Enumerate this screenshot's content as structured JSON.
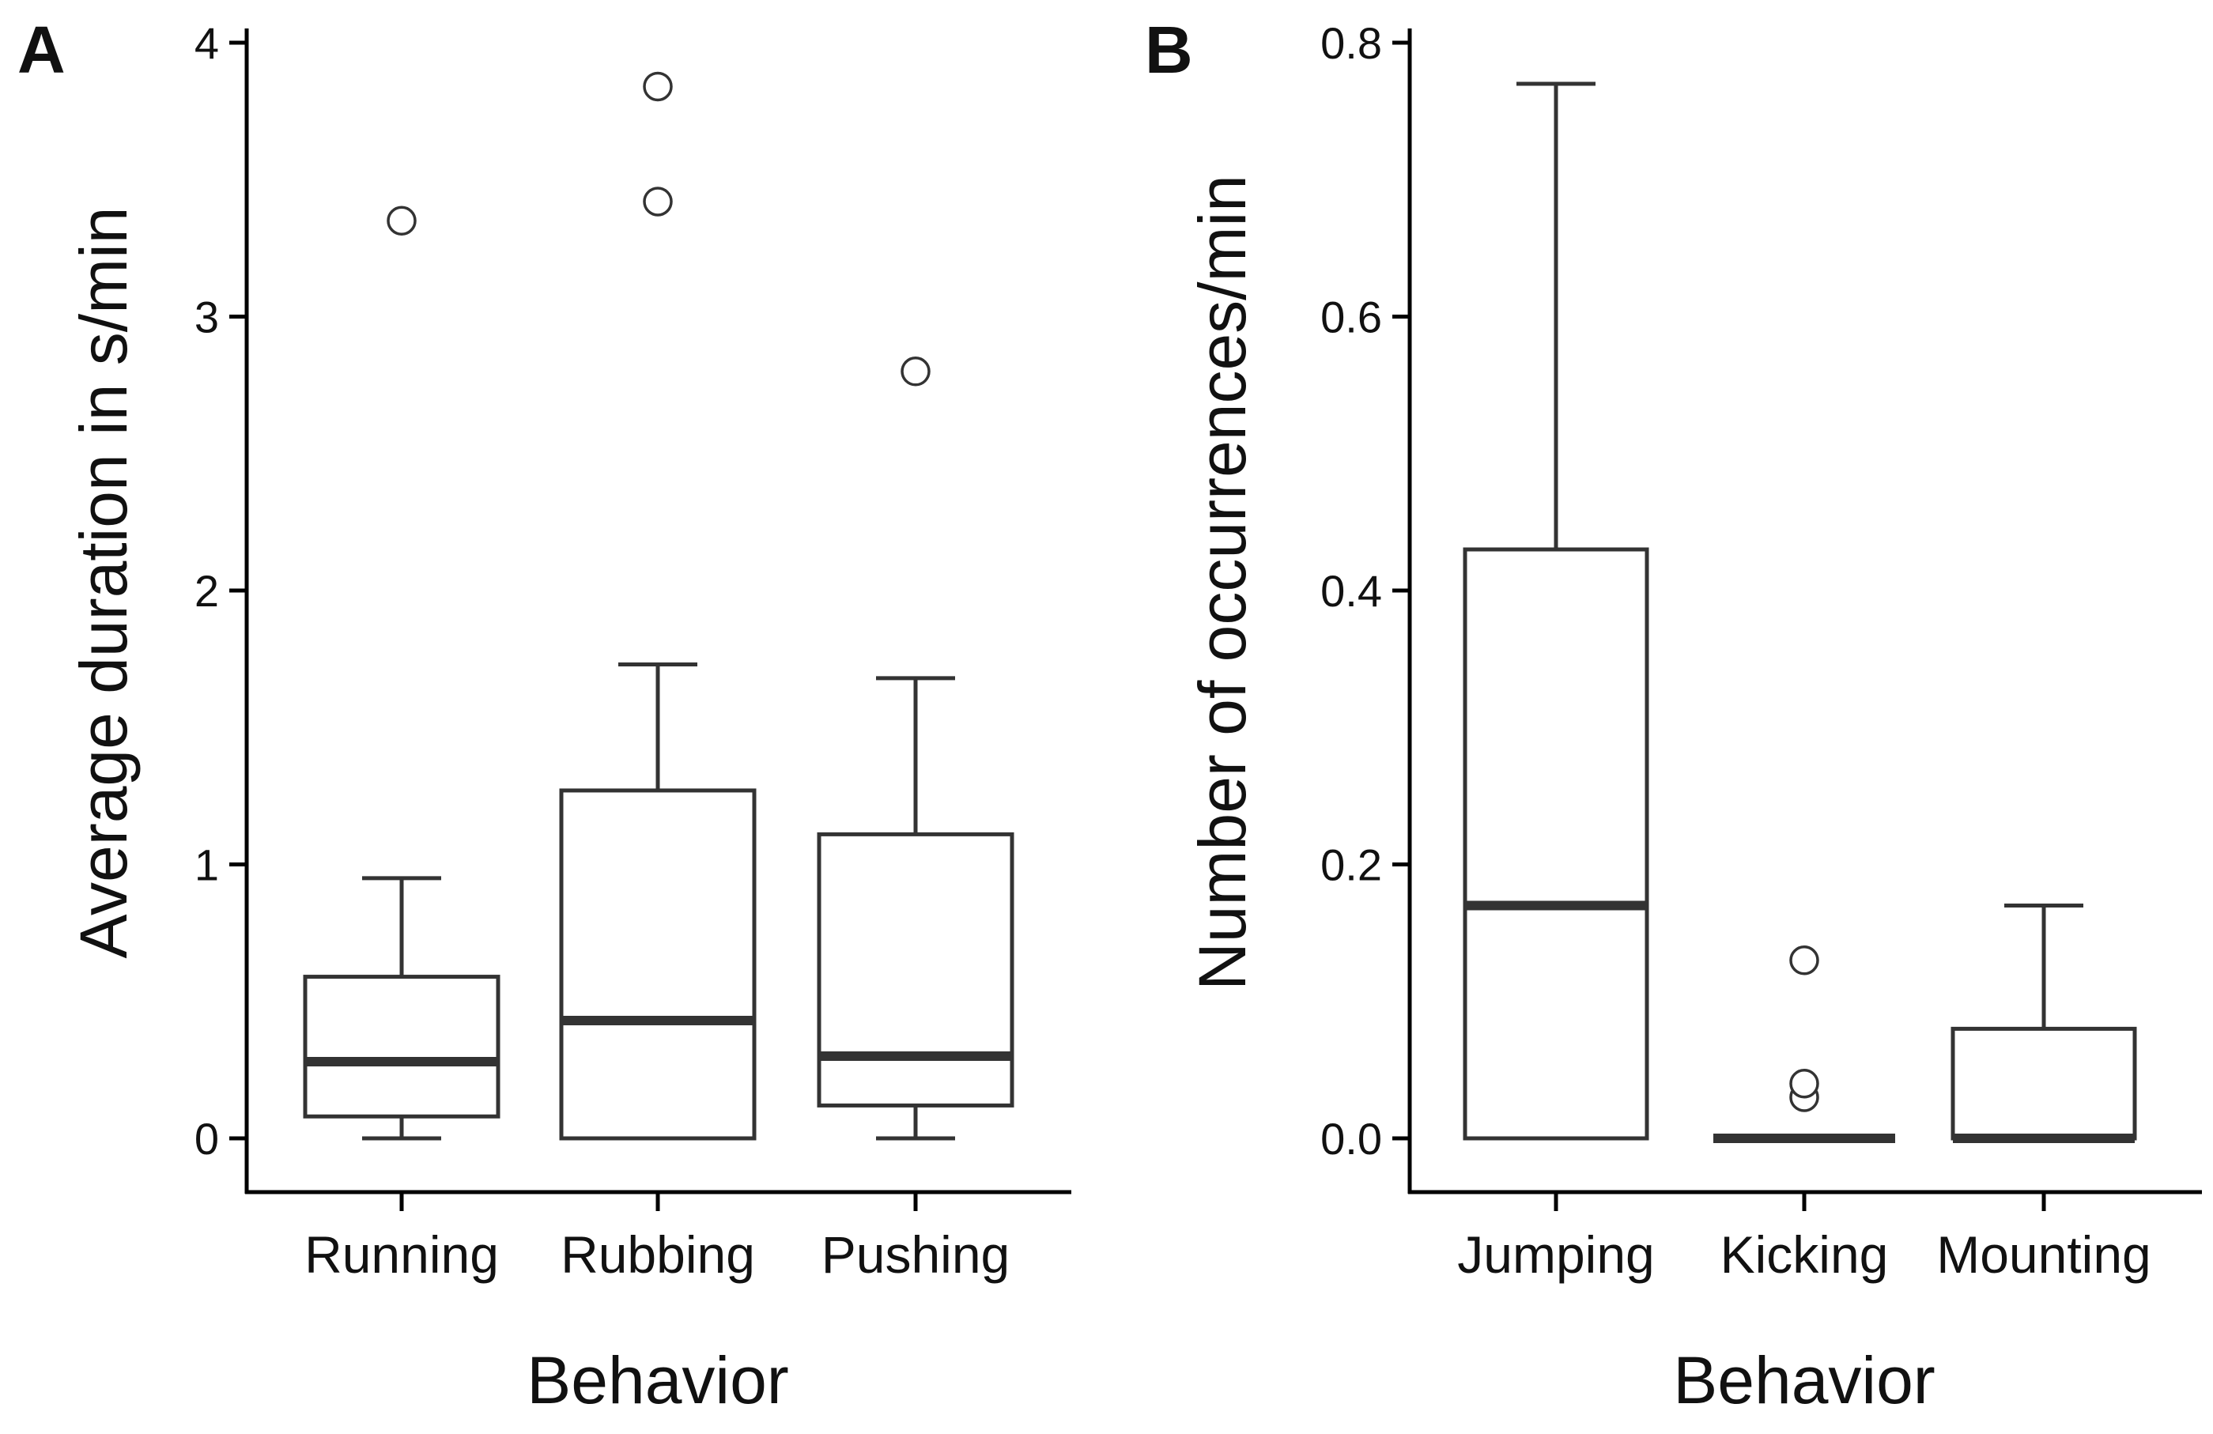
{
  "colors": {
    "stroke": "#333333",
    "median": "#333333",
    "box_fill": "#ffffff",
    "outlier_fill": "#ffffff",
    "background": "#ffffff"
  },
  "chart_data": [
    {
      "type": "boxplot",
      "panel_label": "A",
      "xlabel": "Behavior",
      "ylabel": "Average duration in s/min",
      "ylim": [
        0,
        4
      ],
      "yticks": [
        0,
        1,
        2,
        3,
        4
      ],
      "ytick_labels": [
        "0",
        "1",
        "2",
        "3",
        "4"
      ],
      "grid": false,
      "categories": [
        "Running",
        "Rubbing",
        "Pushing"
      ],
      "boxes": [
        {
          "category": "Running",
          "whisker_low": 0.0,
          "q1": 0.08,
          "median": 0.28,
          "q3": 0.59,
          "whisker_high": 0.95,
          "outliers": [
            3.35
          ]
        },
        {
          "category": "Rubbing",
          "whisker_low": 0.0,
          "q1": 0.0,
          "median": 0.43,
          "q3": 1.27,
          "whisker_high": 1.73,
          "outliers": [
            3.42,
            3.84
          ]
        },
        {
          "category": "Pushing",
          "whisker_low": 0.0,
          "q1": 0.12,
          "median": 0.3,
          "q3": 1.11,
          "whisker_high": 1.68,
          "outliers": [
            2.8
          ]
        }
      ]
    },
    {
      "type": "boxplot",
      "panel_label": "B",
      "xlabel": "Behavior",
      "ylabel": "Number of occurrences/min",
      "ylim": [
        0,
        0.8
      ],
      "yticks": [
        0,
        0.2,
        0.4,
        0.6,
        0.8
      ],
      "ytick_labels": [
        "0.0",
        "0.2",
        "0.4",
        "0.6",
        "0.8"
      ],
      "grid": false,
      "categories": [
        "Jumping",
        "Kicking",
        "Mounting"
      ],
      "boxes": [
        {
          "category": "Jumping",
          "whisker_low": 0.0,
          "q1": 0.0,
          "median": 0.17,
          "q3": 0.43,
          "whisker_high": 0.77,
          "outliers": []
        },
        {
          "category": "Kicking",
          "whisker_low": 0.0,
          "q1": 0.0,
          "median": 0.0,
          "q3": 0.0,
          "whisker_high": 0.0,
          "outliers": [
            0.03,
            0.04,
            0.13
          ]
        },
        {
          "category": "Mounting",
          "whisker_low": 0.0,
          "q1": 0.0,
          "median": 0.0,
          "q3": 0.08,
          "whisker_high": 0.17,
          "outliers": []
        }
      ]
    }
  ]
}
